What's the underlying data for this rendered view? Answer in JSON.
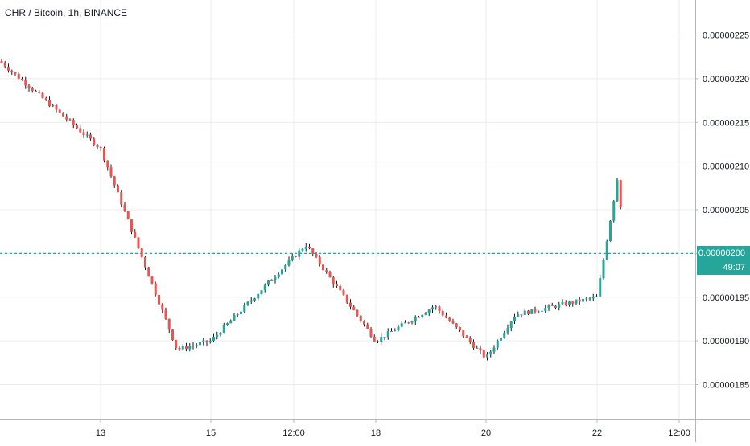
{
  "header": {
    "title": "CHR / Bitcoin, 1h, BINANCE"
  },
  "chart_data": {
    "type": "candlestick",
    "symbol": "CHR / Bitcoin",
    "interval": "1h",
    "exchange": "BINANCE",
    "ylim": [
      1.81e-06,
      2.29e-06
    ],
    "y_ticks": [
      "0.00000225",
      "0.00000220",
      "0.00000215",
      "0.00000210",
      "0.00000205",
      "0.00000200",
      "0.00000195",
      "0.00000190",
      "0.00000185"
    ],
    "x_ticks": [
      "13",
      "15",
      "12:00",
      "18",
      "20",
      "22",
      "12:00"
    ],
    "grid": true,
    "current_price": "0.00000200",
    "countdown": "49:07",
    "colors": {
      "up": "#26a69a",
      "down": "#ef5350",
      "current_line": "#26a69a",
      "grid": "#e9ecf1",
      "text": "#131722"
    },
    "key_points": [
      {
        "label": "start",
        "value": 2.22e-06
      },
      {
        "label": "13",
        "value": 2.12e-06
      },
      {
        "label": "14",
        "value": 1.89e-06
      },
      {
        "label": "15",
        "value": 1.9e-06
      },
      {
        "label": "16 12:00",
        "value": 2.01e-06
      },
      {
        "label": "18",
        "value": 1.9e-06
      },
      {
        "label": "19",
        "value": 1.94e-06
      },
      {
        "label": "20",
        "value": 1.88e-06
      },
      {
        "label": "21",
        "value": 1.93e-06
      },
      {
        "label": "22",
        "value": 1.95e-06
      },
      {
        "label": "22 spike high",
        "value": 2.09e-06
      },
      {
        "label": "last",
        "value": 2e-06
      }
    ]
  }
}
